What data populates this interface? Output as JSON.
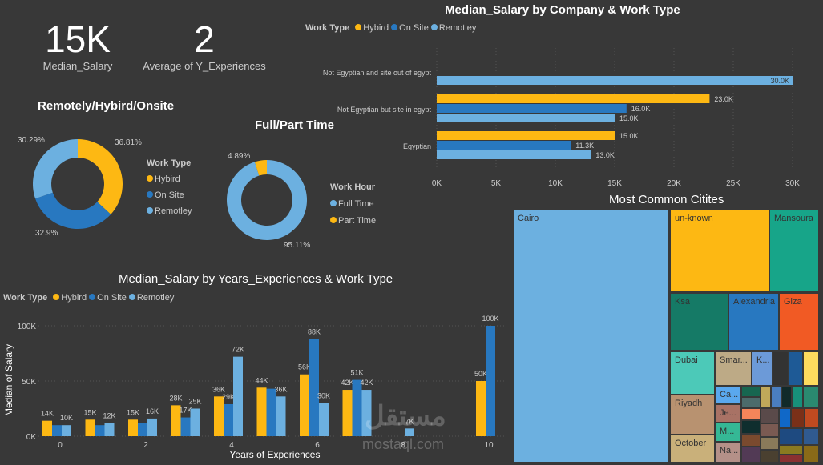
{
  "kpis": [
    {
      "value": "15K",
      "label": "Median_Salary"
    },
    {
      "value": "2",
      "label": "Average of Y_Experiences"
    }
  ],
  "colors": {
    "hybird": "#fdb813",
    "on_site": "#2878c0",
    "remotley": "#6cb0e0",
    "background": "#383838"
  },
  "watermark": {
    "arabic": "مستقل",
    "latin": "mostaql.com"
  },
  "chart_data": [
    {
      "type": "pie",
      "title": "Remotely/Hybird/Onsite",
      "legend_title": "Work Type",
      "legend_placement": "right",
      "slices": [
        {
          "label": "Hybird",
          "value": 36.81,
          "text": "36.81%"
        },
        {
          "label": "On Site",
          "value": 32.9,
          "text": "32.9%"
        },
        {
          "label": "Remotley",
          "value": 30.29,
          "text": "30.29%"
        }
      ]
    },
    {
      "type": "pie",
      "title": "Full/Part Time",
      "legend_title": "Work Hour",
      "legend_placement": "right",
      "slices": [
        {
          "label": "Full Time",
          "value": 95.11,
          "text": "95.11%"
        },
        {
          "label": "Part Time",
          "value": 4.89,
          "text": "4.89%"
        }
      ]
    },
    {
      "type": "bar",
      "orientation": "horizontal",
      "title": "Median_Salary by Company & Work Type",
      "legend_title": "Work Type",
      "legend_placement": "top-left",
      "categories": [
        "Not Egyptian and site out of egypt",
        "Not Egyptian but site in egypt",
        "Egyptian"
      ],
      "series": [
        {
          "name": "Hybird",
          "values": [
            null,
            23000,
            15000
          ],
          "labels": [
            "",
            "23.0K",
            "15.0K"
          ]
        },
        {
          "name": "On Site",
          "values": [
            null,
            16000,
            11300
          ],
          "labels": [
            "",
            "16.0K",
            "11.3K"
          ]
        },
        {
          "name": "Remotley",
          "values": [
            30000,
            15000,
            13000
          ],
          "labels": [
            "30.0K",
            "15.0K",
            "13.0K"
          ]
        }
      ],
      "xlim": [
        0,
        30000
      ],
      "xticks": [
        "0K",
        "5K",
        "10K",
        "15K",
        "20K",
        "25K",
        "30K"
      ],
      "grid": true
    },
    {
      "type": "bar",
      "title": "Median_Salary by Years_Experiences & Work Type",
      "legend_title": "Work Type",
      "legend_placement": "top-left",
      "xlabel": "Years of Experiences",
      "ylabel": "Median of Salary",
      "ylim": [
        0,
        100000
      ],
      "yticks": [
        "0K",
        "50K",
        "100K"
      ],
      "xticks": [
        "0",
        "2",
        "4",
        "6",
        "8",
        "10"
      ],
      "x": [
        0,
        1,
        2,
        3,
        4,
        5,
        6,
        7,
        8,
        10
      ],
      "series": [
        {
          "name": "Hybird",
          "values": [
            14000,
            15000,
            15000,
            28000,
            36000,
            44000,
            56000,
            42000,
            null,
            50000
          ],
          "labels": [
            "14K",
            "15K",
            "15K",
            "28K",
            "36K",
            "44K",
            "56K",
            "42K",
            "",
            "50K"
          ]
        },
        {
          "name": "On Site",
          "values": [
            10000,
            10000,
            12000,
            17000,
            29000,
            43000,
            88000,
            51000,
            null,
            100000
          ],
          "labels": [
            "",
            "",
            "",
            "17K",
            "29K",
            "",
            "88K",
            "51K",
            "",
            "100K"
          ]
        },
        {
          "name": "Remotley",
          "values": [
            10000,
            12000,
            16000,
            25000,
            72000,
            36000,
            30000,
            42000,
            7000,
            null
          ],
          "labels": [
            "10K",
            "12K",
            "16K",
            "25K",
            "72K",
            "36K",
            "30K",
            "42K",
            "7K",
            ""
          ]
        }
      ],
      "grid": true
    },
    {
      "type": "treemap",
      "title": "Most Common Citites",
      "items": [
        {
          "label": "Cairo",
          "color": "#6cb0e0"
        },
        {
          "label": "un-known",
          "color": "#fdb813"
        },
        {
          "label": "Mansoura",
          "color": "#17a589"
        },
        {
          "label": "Ksa",
          "color": "#157a66"
        },
        {
          "label": "Alexandria",
          "color": "#2878c0"
        },
        {
          "label": "Giza",
          "color": "#f15a24"
        },
        {
          "label": "Dubai",
          "color": "#4cc9b8"
        },
        {
          "label": "Riyadh",
          "color": "#b89270"
        },
        {
          "label": "October",
          "color": "#c9b07a"
        },
        {
          "label": "Smar...",
          "color": "#bdaa86"
        },
        {
          "label": "K...",
          "color": "#6c9ad8"
        },
        {
          "label": "Ca...",
          "color": "#5aa8ee"
        },
        {
          "label": "Je...",
          "color": "#a87265"
        },
        {
          "label": "M...",
          "color": "#35b895"
        },
        {
          "label": "Na...",
          "color": "#b49088"
        }
      ]
    }
  ]
}
